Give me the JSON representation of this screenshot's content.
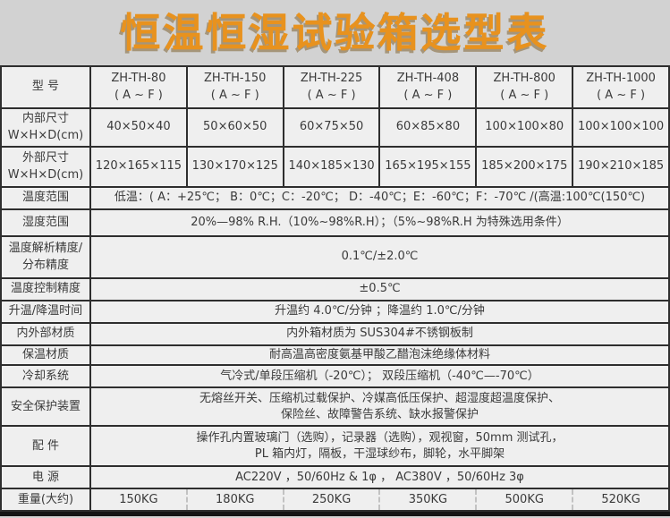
{
  "page": {
    "title": "恒温恒湿试验箱选型表",
    "title_color": "#e8921e",
    "background_color": "#d2d2d2",
    "bottom_bar_color": "#141414"
  },
  "table": {
    "rows": [
      {
        "label": "型 号",
        "cells": [
          "ZH-TH-80\n( A ~ F )",
          "ZH-TH-150\n( A ~ F )",
          "ZH-TH-225\n( A ~ F )",
          "ZH-TH-408\n( A ~ F )",
          "ZH-TH-800\n( A ~ F )",
          "ZH-TH-1000\n( A ~ F )"
        ]
      },
      {
        "label": "内部尺寸\nW×H×D(cm)",
        "cells": [
          "40×50×40",
          "50×60×50",
          "60×75×50",
          "60×85×80",
          "100×100×80",
          "100×100×100"
        ]
      },
      {
        "label": "外部尺寸\nW×H×D(cm)",
        "cells": [
          "120×165×115",
          "130×170×125",
          "140×185×130",
          "165×195×155",
          "185×200×175",
          "190×210×185"
        ]
      },
      {
        "label": "温度范围",
        "value": "低温：( A：+25℃；  B：0℃；C：-20℃；  D：-40℃；E：-60℃；F：-70℃   /(高温:100℃(150℃)"
      },
      {
        "label": "湿度范围",
        "value": "20%—98% R.H.（10%~98%R.H）；（5%~98%R.H 为特殊选用条件）"
      },
      {
        "label": "温度解析精度/\n分布精度",
        "value": "0.1℃/±2.0℃"
      },
      {
        "label": "温度控制精度",
        "value": "±0.5℃"
      },
      {
        "label": "升温/降温时间",
        "value": "升温约 4.0℃/分钟 ；降温约 1.0℃/分钟"
      },
      {
        "label": "内外部材质",
        "value": "内外箱材质为 SUS304#不锈钢板制"
      },
      {
        "label": "保温材质",
        "value": "耐高温高密度氨基甲酸乙醋泡沫绝缘体材料"
      },
      {
        "label": "冷却系统",
        "value": "气冷式/单段压缩机（-20℃）；  双段压缩机（-40℃—-70℃）"
      },
      {
        "label": "安全保护装置",
        "value": "无熔丝开关、压缩机过载保护、冷媒高低压保护、超湿度超温度保护、\n保险丝、故障警告系统、缺水报警保护"
      },
      {
        "label": "配 件",
        "value": "操作孔内置玻璃门（选购），记录器（选购），观视窗，50mm 测试孔，\nPL 箱内灯，隔板，干湿球纱布，脚轮，水平脚架"
      },
      {
        "label": "电 源",
        "value": "AC220V ，50/60Hz & 1φ ，  AC380V ，50/60Hz 3φ"
      },
      {
        "label": "重量(大约)",
        "cells": [
          "150KG",
          "180KG",
          "250KG",
          "350KG",
          "500KG",
          "520KG"
        ],
        "dotted": true
      }
    ]
  }
}
